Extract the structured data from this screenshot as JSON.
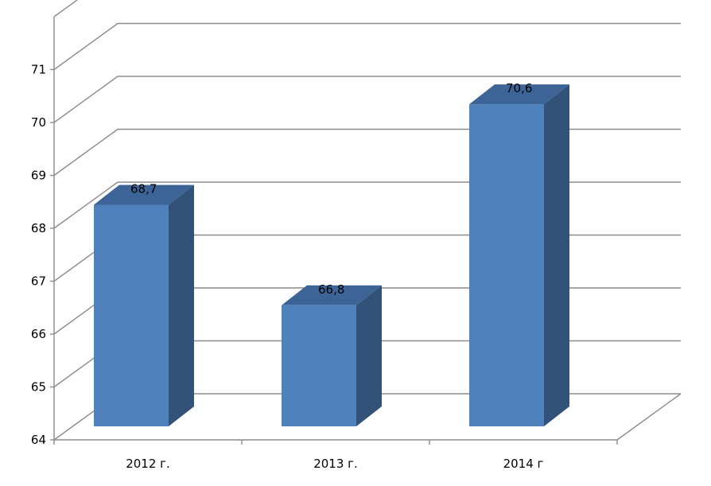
{
  "chart_data": {
    "type": "bar",
    "categories": [
      "2012 г.",
      "2013 г.",
      "2014 г"
    ],
    "values": [
      68.7,
      66.8,
      70.6
    ],
    "data_labels": [
      "68,7",
      "66,8",
      "70,6"
    ],
    "yticks": [
      "64",
      "65",
      "66",
      "67",
      "68",
      "69",
      "70",
      "71"
    ],
    "ylim": [
      64,
      71
    ],
    "title": "",
    "xlabel": "",
    "ylabel": "",
    "grid": true,
    "legend": "none",
    "style": "3d-column",
    "colors": {
      "bar_front": "#4f81bd",
      "bar_side": "#32527a",
      "bar_top": "#3d6496",
      "grid": "#8c8c8c"
    }
  }
}
